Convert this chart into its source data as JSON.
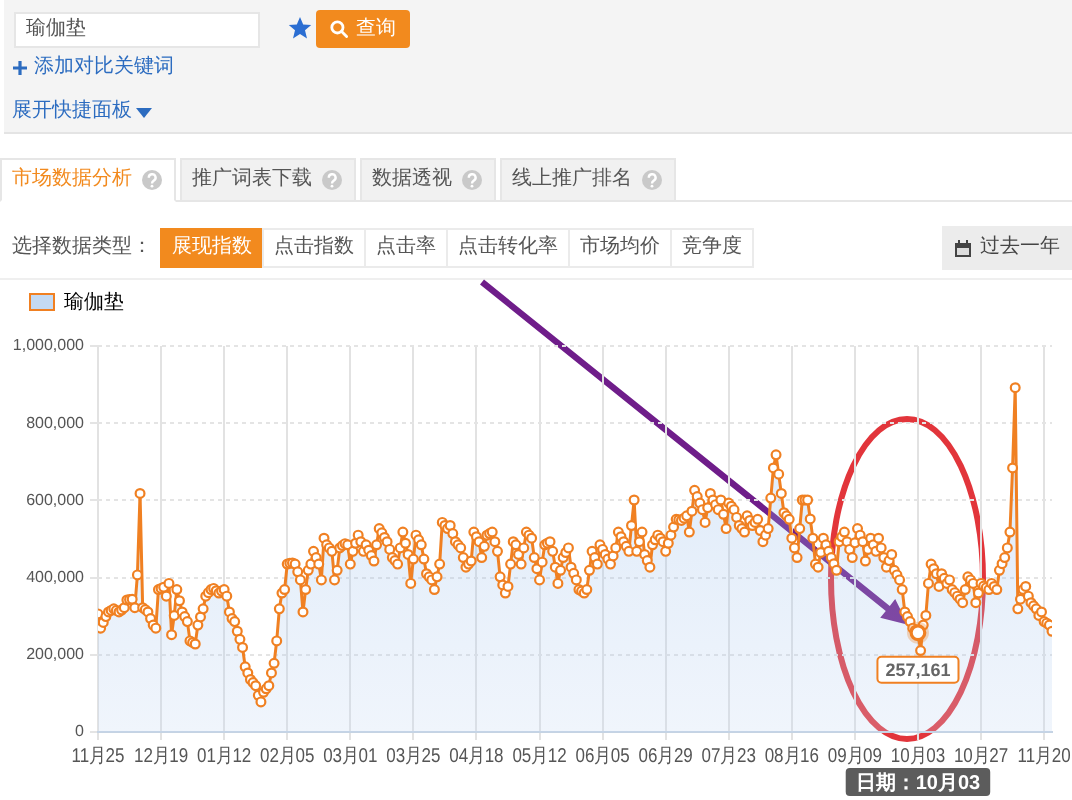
{
  "chart_data": [
    {
      "type": "other",
      "annotations": [
        "瑜伽垫",
        "查询",
        "添加对比关键词",
        "展开快捷面板",
        "市场数据分析",
        "推广词表下载",
        "数据透视",
        "线上推广排名",
        "选择数据类型：",
        "展现指数",
        "点击指数",
        "点击率",
        "点击转化率",
        "市场均价",
        "竞争度",
        "过去一年"
      ]
    },
    {
      "type": "area",
      "legend": "top left",
      "marker": "circle",
      "grid": true,
      "categories": [
        "11月25",
        null,
        null,
        null,
        null,
        null,
        null,
        null,
        null,
        null,
        null,
        null,
        null,
        null,
        null,
        null,
        null,
        null,
        null,
        null,
        null,
        null,
        null,
        null,
        "12月19",
        null,
        null,
        null,
        null,
        null,
        null,
        null,
        null,
        null,
        null,
        null,
        null,
        null,
        null,
        null,
        null,
        null,
        null,
        null,
        null,
        null,
        null,
        null,
        "01月12",
        null,
        null,
        null,
        null,
        null,
        null,
        null,
        null,
        null,
        null,
        null,
        null,
        null,
        null,
        null,
        null,
        null,
        null,
        null,
        null,
        null,
        null,
        null,
        "02月05",
        null,
        null,
        null,
        null,
        null,
        null,
        null,
        null,
        null,
        null,
        null,
        null,
        null,
        null,
        null,
        null,
        null,
        null,
        null,
        null,
        null,
        null,
        null,
        "03月01",
        null,
        null,
        null,
        null,
        null,
        null,
        null,
        null,
        null,
        null,
        null,
        null,
        null,
        null,
        null,
        null,
        null,
        null,
        null,
        null,
        null,
        null,
        null,
        "03月25",
        null,
        null,
        null,
        null,
        null,
        null,
        null,
        null,
        null,
        null,
        null,
        null,
        null,
        null,
        null,
        null,
        null,
        null,
        null,
        null,
        null,
        null,
        null,
        "04月18",
        null,
        null,
        null,
        null,
        null,
        null,
        null,
        null,
        null,
        null,
        null,
        null,
        null,
        null,
        null,
        null,
        null,
        null,
        null,
        null,
        null,
        null,
        null,
        "05月12",
        null,
        null,
        null,
        null,
        null,
        null,
        null,
        null,
        null,
        null,
        null,
        null,
        null,
        null,
        null,
        null,
        null,
        null,
        null,
        null,
        null,
        null,
        null,
        "06月05",
        null,
        null,
        null,
        null,
        null,
        null,
        null,
        null,
        null,
        null,
        null,
        null,
        null,
        null,
        null,
        null,
        null,
        null,
        null,
        null,
        null,
        null,
        null,
        "06月29",
        null,
        null,
        null,
        null,
        null,
        null,
        null,
        null,
        null,
        null,
        null,
        null,
        null,
        null,
        null,
        null,
        null,
        null,
        null,
        null,
        null,
        null,
        null,
        "07月23",
        null,
        null,
        null,
        null,
        null,
        null,
        null,
        null,
        null,
        null,
        null,
        null,
        null,
        null,
        null,
        null,
        null,
        null,
        null,
        null,
        null,
        null,
        null,
        "08月16",
        null,
        null,
        null,
        null,
        null,
        null,
        null,
        null,
        null,
        null,
        null,
        null,
        null,
        null,
        null,
        null,
        null,
        null,
        null,
        null,
        null,
        null,
        null,
        "09月09",
        null,
        null,
        null,
        null,
        null,
        null,
        null,
        null,
        null,
        null,
        null,
        null,
        null,
        null,
        null,
        null,
        null,
        null,
        null,
        null,
        null,
        null,
        null,
        "10月03",
        null,
        null,
        null,
        null,
        null,
        null,
        null,
        null,
        null,
        null,
        null,
        null,
        null,
        null,
        null,
        null,
        null,
        null,
        null,
        null,
        null,
        null,
        null,
        "10月27",
        null,
        null,
        null,
        null,
        null,
        null,
        null,
        null,
        null,
        null,
        null,
        null,
        null,
        null,
        null,
        null,
        null,
        null,
        null,
        null,
        null,
        null,
        null,
        "11月20",
        null,
        null,
        null
      ],
      "series": [
        {
          "name": "瑜伽垫",
          "color": "#f08022",
          "values": [
            306000,
            269000,
            284000,
            299000,
            311000,
            315000,
            319000,
            315000,
            311000,
            316000,
            322000,
            342000,
            343000,
            344000,
            322000,
            407000,
            618000,
            322000,
            317000,
            311000,
            294000,
            277000,
            269000,
            369000,
            372000,
            375000,
            352000,
            385000,
            252000,
            302000,
            369000,
            340000,
            311000,
            299000,
            286000,
            236000,
            232000,
            228000,
            277000,
            298000,
            319000,
            352000,
            361000,
            369000,
            372000,
            366000,
            360000,
            365000,
            369000,
            352000,
            311000,
            294000,
            286000,
            261000,
            240000,
            219000,
            169000,
            153000,
            136000,
            128000,
            120000,
            95000,
            78000,
            103000,
            112000,
            120000,
            153000,
            178000,
            236000,
            319000,
            360000,
            369000,
            435000,
            437000,
            438000,
            435000,
            415000,
            394000,
            311000,
            369000,
            419000,
            435000,
            468000,
            452000,
            435000,
            394000,
            502000,
            485000,
            477000,
            468000,
            394000,
            419000,
            477000,
            483000,
            488000,
            485000,
            435000,
            468000,
            489000,
            510000,
            493000,
            468000,
            485000,
            471000,
            457000,
            443000,
            485000,
            527000,
            516000,
            504000,
            493000,
            473000,
            452000,
            444000,
            435000,
            477000,
            518000,
            489000,
            460000,
            385000,
            448000,
            510000,
            498000,
            485000,
            448000,
            410000,
            402000,
            394000,
            369000,
            402000,
            435000,
            543000,
            535000,
            527000,
            535000,
            514000,
            493000,
            485000,
            477000,
            452000,
            427000,
            435000,
            443000,
            518000,
            506000,
            493000,
            452000,
            481000,
            510000,
            514000,
            518000,
            493000,
            468000,
            402000,
            381000,
            360000,
            377000,
            435000,
            493000,
            485000,
            460000,
            435000,
            477000,
            518000,
            510000,
            502000,
            452000,
            423000,
            394000,
            440000,
            485000,
            489000,
            493000,
            468000,
            427000,
            385000,
            419000,
            452000,
            465000,
            477000,
            427000,
            411000,
            394000,
            369000,
            365000,
            360000,
            369000,
            419000,
            468000,
            452000,
            435000,
            485000,
            473000,
            460000,
            448000,
            435000,
            456000,
            477000,
            518000,
            506000,
            493000,
            481000,
            468000,
            535000,
            601000,
            468000,
            493000,
            518000,
            460000,
            444000,
            427000,
            485000,
            498000,
            510000,
            502000,
            493000,
            468000,
            489000,
            510000,
            531000,
            551000,
            550000,
            548000,
            554000,
            560000,
            518000,
            572000,
            626000,
            610000,
            593000,
            576000,
            543000,
            581000,
            618000,
            601000,
            589000,
            576000,
            601000,
            564000,
            527000,
            593000,
            585000,
            576000,
            556000,
            535000,
            527000,
            518000,
            560000,
            548000,
            535000,
            543000,
            551000,
            522000,
            493000,
            510000,
            527000,
            606000,
            684000,
            718000,
            668000,
            618000,
            568000,
            560000,
            551000,
            502000,
            477000,
            452000,
            527000,
            601000,
            601000,
            601000,
            552000,
            502000,
            435000,
            427000,
            465000,
            502000,
            485000,
            468000,
            452000,
            436000,
            419000,
            493000,
            506000,
            518000,
            493000,
            473000,
            452000,
            490000,
            527000,
            510000,
            493000,
            443000,
            473000,
            502000,
            485000,
            468000,
            502000,
            477000,
            452000,
            427000,
            444000,
            460000,
            419000,
            407000,
            394000,
            369000,
            311000,
            299000,
            286000,
            269000,
            263000,
            257161,
            211000,
            277000,
            302000,
            385000,
            435000,
            423000,
            410000,
            377000,
            410000,
            398000,
            385000,
            394000,
            369000,
            361000,
            352000,
            344000,
            335000,
            369000,
            402000,
            394000,
            385000,
            335000,
            360000,
            385000,
            378000,
            374000,
            369000,
            385000,
            377000,
            369000,
            419000,
            436000,
            452000,
            477000,
            518000,
            684000,
            892000,
            319000,
            344000,
            369000,
            377000,
            352000,
            335000,
            327000,
            319000,
            302000,
            311000,
            286000,
            282000,
            277000,
            261000
          ]
        }
      ],
      "ylim": [
        0,
        1000000
      ],
      "yticks": [
        0,
        {
          "value": 200000,
          "label": "200,000"
        },
        {
          "value": 400000,
          "label": "400,000"
        },
        {
          "value": 600000,
          "label": "600,000"
        },
        {
          "value": 800000,
          "label": "800,000"
        },
        {
          "value": 1000000,
          "label": "1,000,000"
        }
      ],
      "annotations": [
        {
          "text": "257,161",
          "x": "10月03",
          "y": 257161
        },
        "日期：10月03"
      ]
    }
  ]
}
